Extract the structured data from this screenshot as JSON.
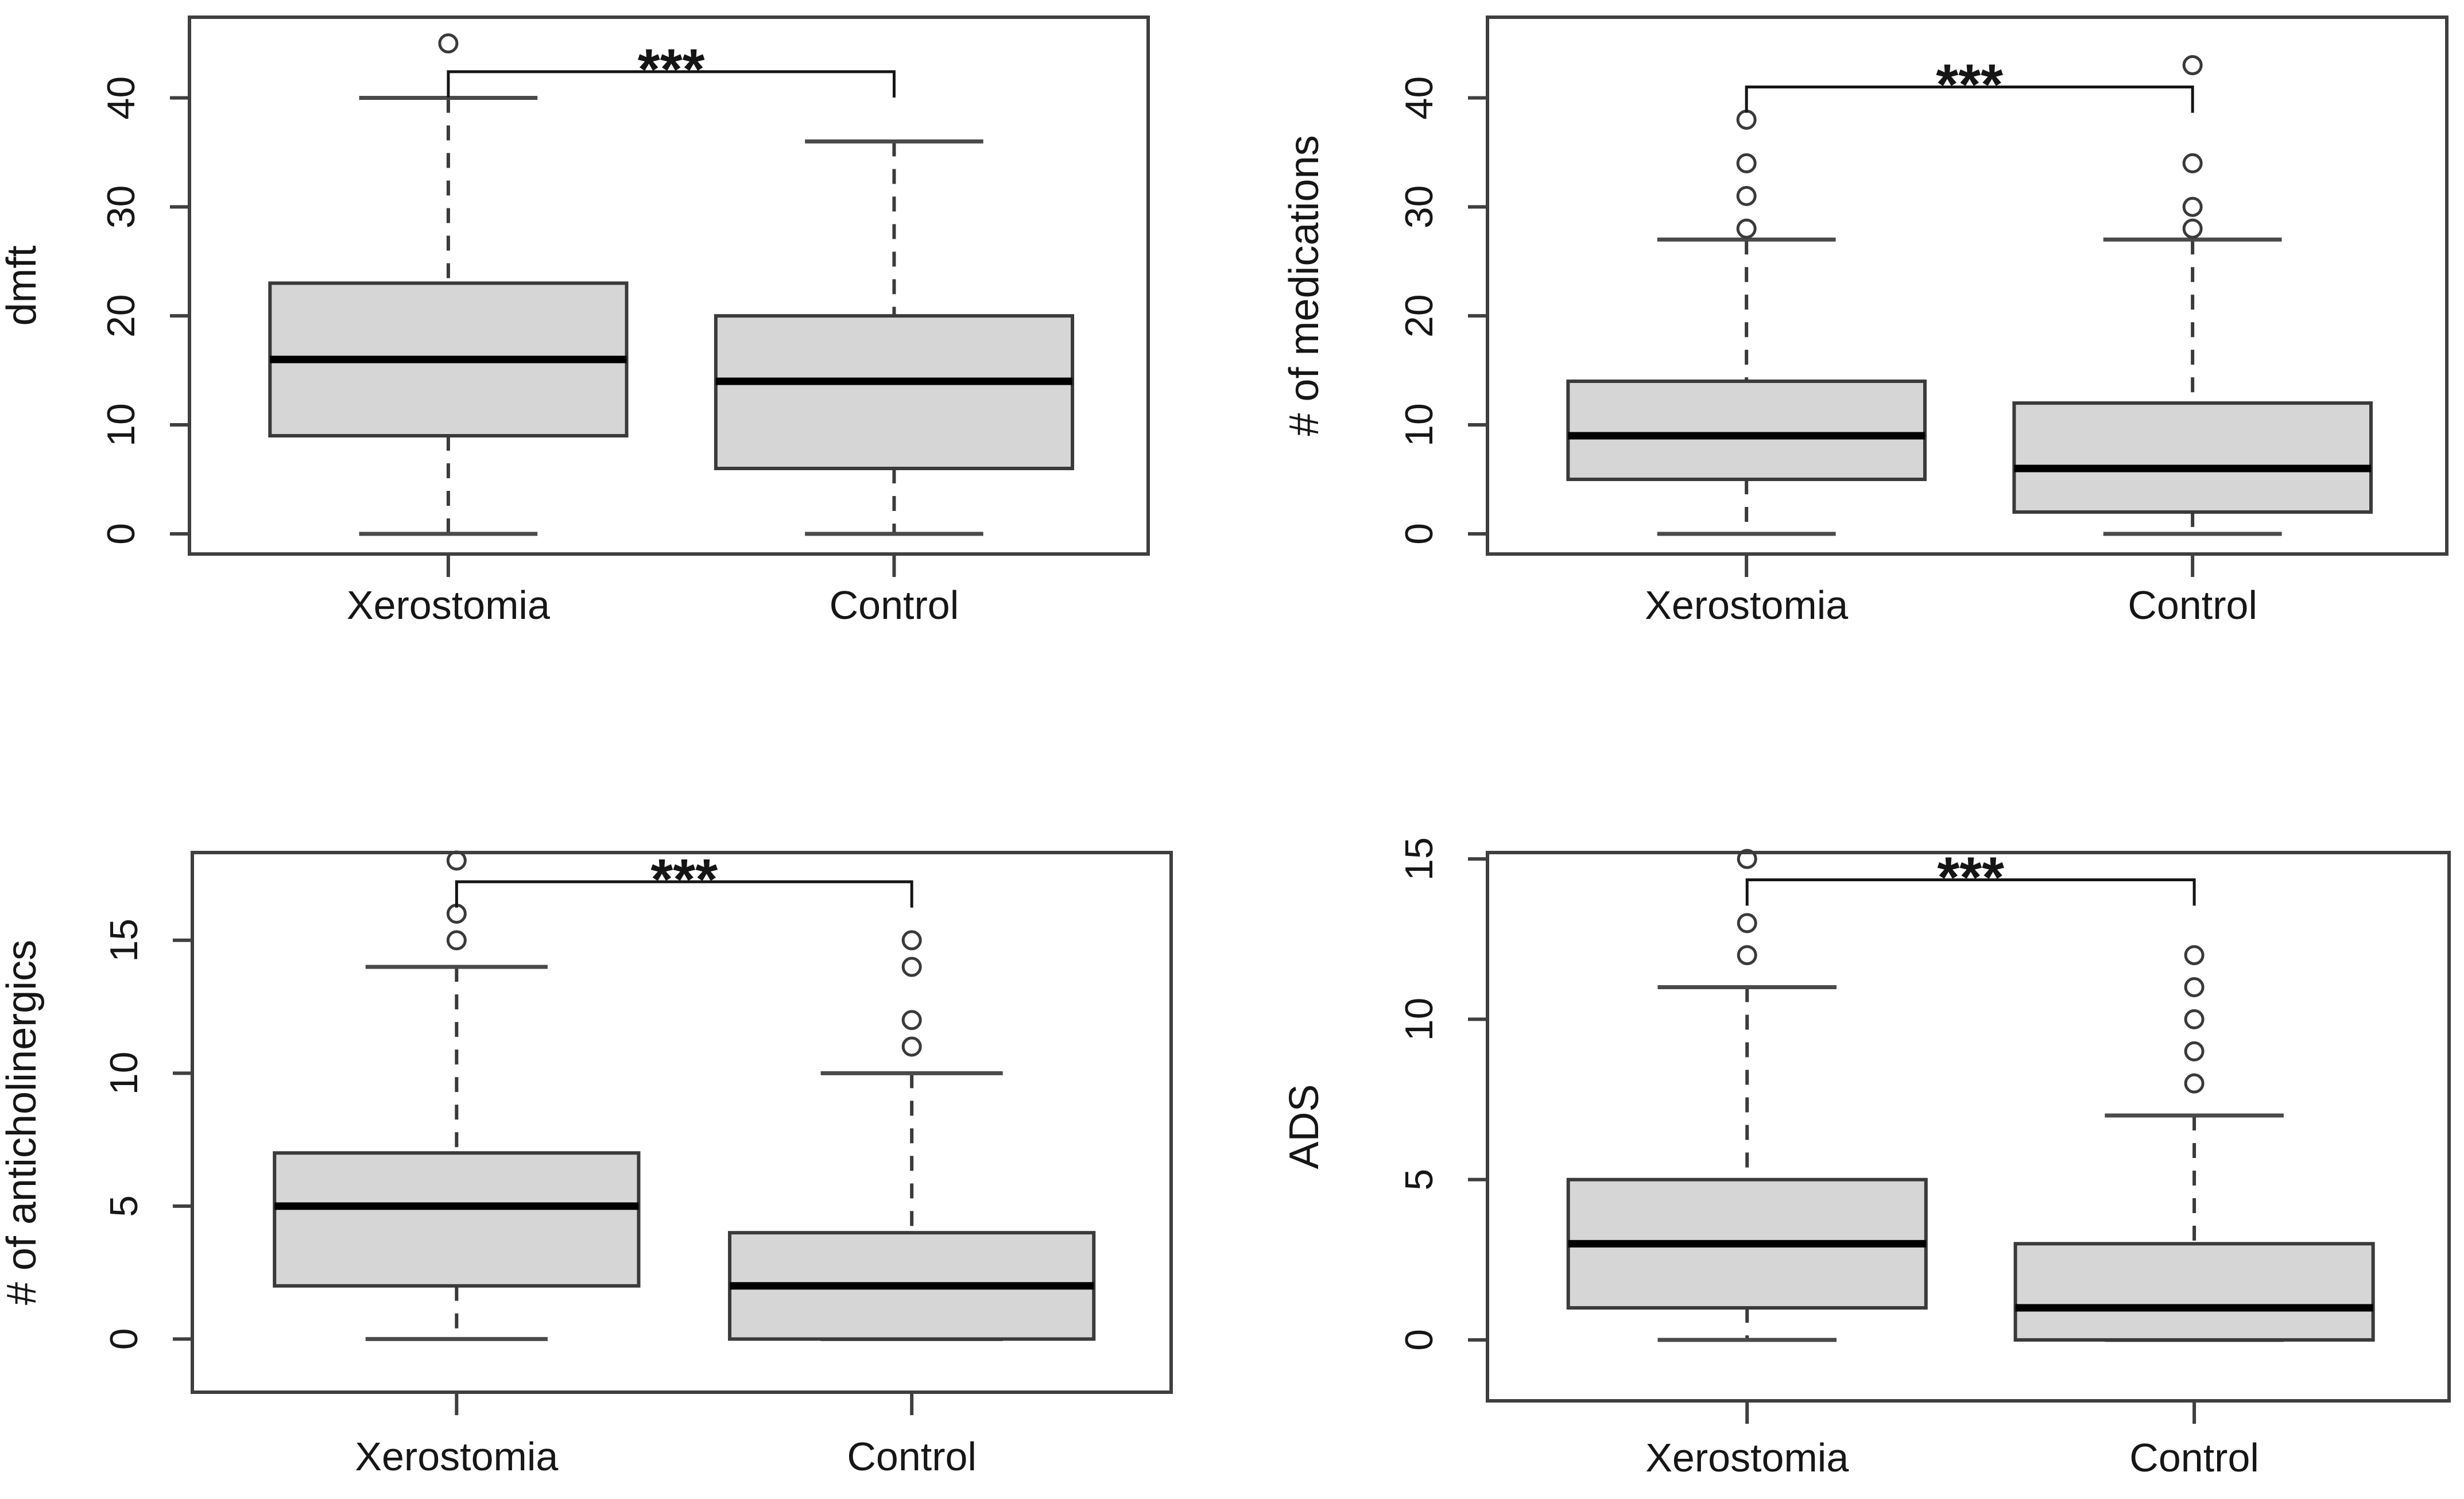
{
  "figure": {
    "background": "#ffffff",
    "text_color": "#161616",
    "frame_color": "#3f3f3f",
    "box_fill": "#d6d6d6",
    "box_border": "#3a3a3a",
    "median_color": "#000000",
    "whisker_color": "#3a3a3a",
    "cap_color": "#4a4a4a",
    "outlier_color": "#3a3a3a",
    "bracket_color": "#151515"
  },
  "chart_data": [
    {
      "type": "boxplot",
      "panel": "top-left",
      "title": "",
      "xlabel": "",
      "ylabel": "dmft",
      "categories": [
        "Xerostomia",
        "Control"
      ],
      "yticks": [
        0,
        10,
        20,
        30,
        40
      ],
      "ylim": [
        -1.85,
        47.4
      ],
      "grid": false,
      "series": [
        {
          "name": "Xerostomia",
          "whisker_low": 0,
          "q1": 9,
          "median": 16,
          "q3": 23,
          "whisker_high": 40,
          "outliers": [
            45
          ]
        },
        {
          "name": "Control",
          "whisker_low": 0,
          "q1": 6,
          "median": 14,
          "q3": 20,
          "whisker_high": 36,
          "outliers": []
        }
      ],
      "significance": {
        "label": "***",
        "y": 42.4
      }
    },
    {
      "type": "boxplot",
      "panel": "top-right",
      "title": "",
      "xlabel": "",
      "ylabel": "# of medications",
      "categories": [
        "Xerostomia",
        "Control"
      ],
      "yticks": [
        0,
        10,
        20,
        30,
        40
      ],
      "ylim": [
        -1.85,
        47.4
      ],
      "grid": false,
      "series": [
        {
          "name": "Xerostomia",
          "whisker_low": 0,
          "q1": 5,
          "median": 9,
          "q3": 14,
          "whisker_high": 27,
          "outliers": [
            28,
            31,
            34,
            38
          ]
        },
        {
          "name": "Control",
          "whisker_low": 0,
          "q1": 2,
          "median": 6,
          "q3": 12,
          "whisker_high": 27,
          "outliers": [
            28,
            30,
            34,
            43
          ]
        }
      ],
      "significance": {
        "label": "***",
        "y": 41
      }
    },
    {
      "type": "boxplot",
      "panel": "bottom-left",
      "title": "",
      "xlabel": "",
      "ylabel": "# of anticholinergics",
      "categories": [
        "Xerostomia",
        "Control"
      ],
      "yticks": [
        0,
        5,
        10,
        15
      ],
      "ylim": [
        -2.0,
        18.3
      ],
      "grid": false,
      "series": [
        {
          "name": "Xerostomia",
          "whisker_low": 0,
          "q1": 2,
          "median": 5,
          "q3": 7,
          "whisker_high": 14,
          "outliers": [
            15,
            16,
            18
          ]
        },
        {
          "name": "Control",
          "whisker_low": 0,
          "q1": 0,
          "median": 2,
          "q3": 4,
          "whisker_high": 10,
          "outliers": [
            11,
            12,
            14,
            15
          ]
        }
      ],
      "significance": {
        "label": "***",
        "y": 17.2
      }
    },
    {
      "type": "boxplot",
      "panel": "bottom-right",
      "title": "",
      "xlabel": "",
      "ylabel": "ADS",
      "categories": [
        "Xerostomia",
        "Control"
      ],
      "yticks": [
        0,
        5,
        10,
        15
      ],
      "ylim": [
        -1.9,
        15.2
      ],
      "grid": false,
      "series": [
        {
          "name": "Xerostomia",
          "whisker_low": 0,
          "q1": 1,
          "median": 3,
          "q3": 5,
          "whisker_high": 11,
          "outliers": [
            12,
            13,
            15
          ]
        },
        {
          "name": "Control",
          "whisker_low": 0,
          "q1": 0,
          "median": 1,
          "q3": 3,
          "whisker_high": 7,
          "outliers": [
            8,
            9,
            10,
            11,
            12
          ]
        }
      ],
      "significance": {
        "label": "***",
        "y": 14.35
      }
    }
  ]
}
